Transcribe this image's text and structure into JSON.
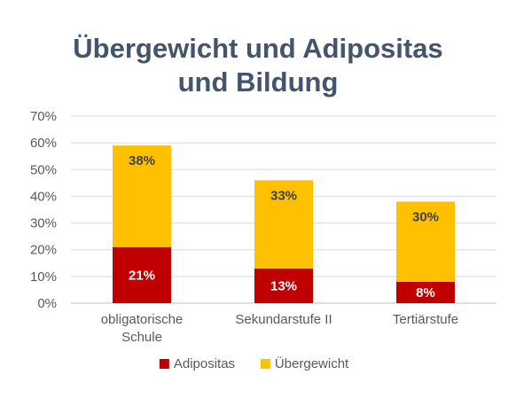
{
  "chart_data": {
    "type": "bar",
    "stacked": true,
    "title_lines": [
      "Übergewicht und Adipositas",
      "und Bildung"
    ],
    "categories": [
      [
        "obligatorische",
        "Schule"
      ],
      [
        "Sekundarstufe II"
      ],
      [
        "Tertiärstufe"
      ]
    ],
    "series": [
      {
        "name": "Adipositas",
        "color": "#C00000",
        "values": [
          21,
          13,
          8
        ],
        "labels": [
          "21%",
          "13%",
          "8%"
        ],
        "label_color": "#FFFFFF"
      },
      {
        "name": "Übergewicht",
        "color": "#FFC000",
        "values": [
          38,
          33,
          30
        ],
        "labels": [
          "38%",
          "33%",
          "30%"
        ],
        "label_color": "#404040"
      }
    ],
    "ylim": [
      0,
      70
    ],
    "yticks": [
      "0%",
      "10%",
      "20%",
      "30%",
      "40%",
      "50%",
      "60%",
      "70%"
    ],
    "grid": true,
    "legend_position": "bottom"
  }
}
